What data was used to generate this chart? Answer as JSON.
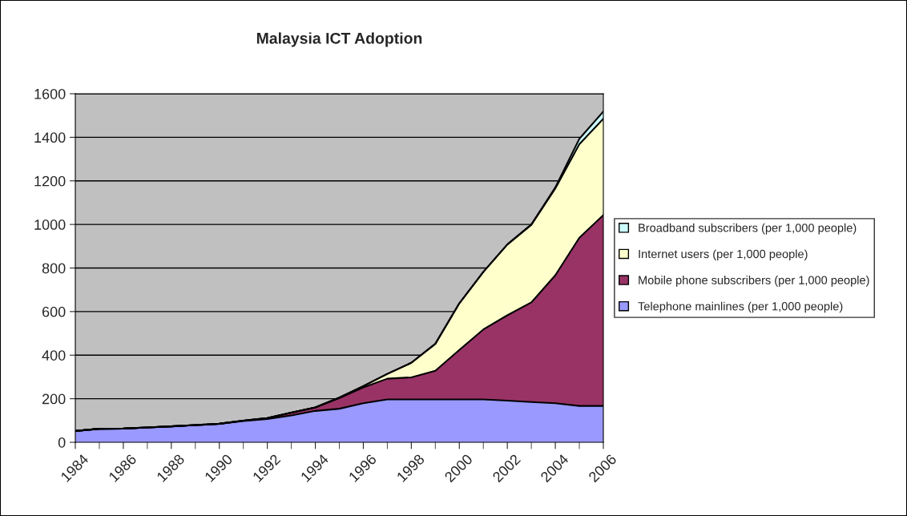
{
  "chart_data": {
    "type": "area",
    "stacked": true,
    "title": "Malaysia ICT Adoption",
    "x": [
      1984,
      1985,
      1986,
      1987,
      1988,
      1989,
      1990,
      1991,
      1992,
      1993,
      1994,
      1995,
      1996,
      1997,
      1998,
      1999,
      2000,
      2001,
      2002,
      2003,
      2004,
      2005,
      2006
    ],
    "xlim": [
      1984,
      2006
    ],
    "xticks": [
      1984,
      1986,
      1988,
      1990,
      1992,
      1994,
      1996,
      1998,
      2000,
      2002,
      2004,
      2006
    ],
    "ylim": [
      0,
      1600
    ],
    "yticks": [
      0,
      200,
      400,
      600,
      800,
      1000,
      1200,
      1400,
      1600
    ],
    "grid": "y",
    "legend": "right",
    "series": [
      {
        "name": "Telephone mainlines (per 1,000 people)",
        "color": "#9999ff",
        "values": [
          52,
          62,
          63,
          68,
          73,
          79,
          85,
          98,
          107,
          123,
          144,
          154,
          179,
          197,
          197,
          197,
          197,
          197,
          191,
          185,
          179,
          167,
          167
        ]
      },
      {
        "name": "Mobile phone subscribers (per 1,000 people)",
        "color": "#993366",
        "values": [
          0,
          0,
          0,
          0,
          0,
          0,
          0,
          1,
          4,
          13,
          16,
          49,
          73,
          95,
          101,
          131,
          227,
          321,
          392,
          457,
          588,
          772,
          876
        ]
      },
      {
        "name": "Internet users (per 1,000 people)",
        "color": "#ffffcc",
        "values": [
          0,
          0,
          0,
          0,
          0,
          0,
          0,
          0,
          0,
          0,
          0,
          2,
          6,
          22,
          67,
          124,
          214,
          264,
          325,
          356,
          398,
          429,
          442
        ]
      },
      {
        "name": "Broadband subscribers (per 1,000 people)",
        "color": "#ccffff",
        "values": [
          0,
          0,
          0,
          0,
          0,
          0,
          0,
          0,
          0,
          0,
          0,
          0,
          0,
          0,
          0,
          0,
          0,
          0,
          0,
          2,
          5,
          25,
          33
        ]
      }
    ]
  }
}
